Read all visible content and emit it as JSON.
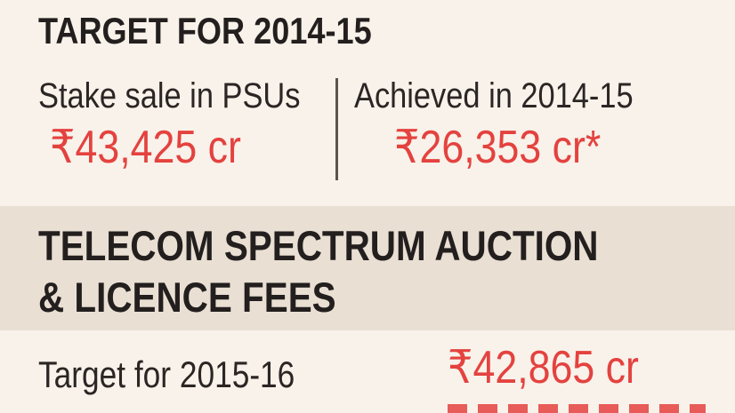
{
  "sections": [
    {
      "heading": "TARGET FOR 2014-15",
      "stats": [
        {
          "label": "Stake sale in PSUs",
          "value": "₹43,425 cr"
        },
        {
          "label": "Achieved in 2014-15",
          "value": "₹26,353 cr*"
        }
      ]
    },
    {
      "heading_lines": [
        "TELECOM SPECTRUM AUCTION",
        "& LICENCE FEES"
      ],
      "rows": [
        {
          "label": "Target for 2015-16",
          "value": "₹42,865 cr"
        }
      ]
    }
  ],
  "colors": {
    "background": "#f8f2ea",
    "band": "#e9dfd3",
    "heading_text": "#231f1e",
    "body_text": "#2b2624",
    "value_red": "#e4423f",
    "divider": "#5a5350"
  }
}
